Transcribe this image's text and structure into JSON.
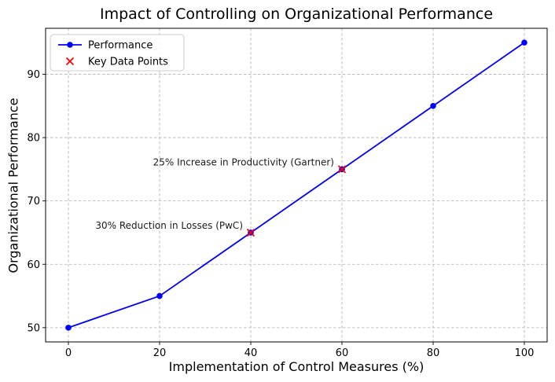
{
  "chart_data": {
    "type": "line",
    "title": "Impact of Controlling on Organizational Performance",
    "xlabel": "Implementation of Control Measures (%)",
    "ylabel": "Organizational Performance",
    "x": [
      0,
      20,
      40,
      60,
      80,
      100
    ],
    "series": [
      {
        "name": "Performance",
        "type": "line",
        "marker": "circle",
        "color": "#0000ff",
        "values": [
          50,
          55,
          65,
          75,
          85,
          95
        ]
      },
      {
        "name": "Key Data Points",
        "type": "scatter",
        "marker": "x",
        "color": "#ff0000",
        "x": [
          40,
          60
        ],
        "values": [
          65,
          75
        ]
      }
    ],
    "annotations": [
      {
        "text": "30% Reduction in Losses (PwC)",
        "x": 40,
        "y": 65
      },
      {
        "text": "25% Increase in Productivity (Gartner)",
        "x": 60,
        "y": 75
      }
    ],
    "xticks": [
      0,
      20,
      40,
      60,
      80,
      100
    ],
    "yticks": [
      50,
      60,
      70,
      80,
      90
    ],
    "xlim": [
      -5,
      105
    ],
    "ylim": [
      47.75,
      97.25
    ],
    "grid": true,
    "grid_style": "dashed",
    "grid_color": "#b0b0b0",
    "legend": {
      "position": "upper left",
      "entries": [
        "Performance",
        "Key Data Points"
      ]
    }
  }
}
